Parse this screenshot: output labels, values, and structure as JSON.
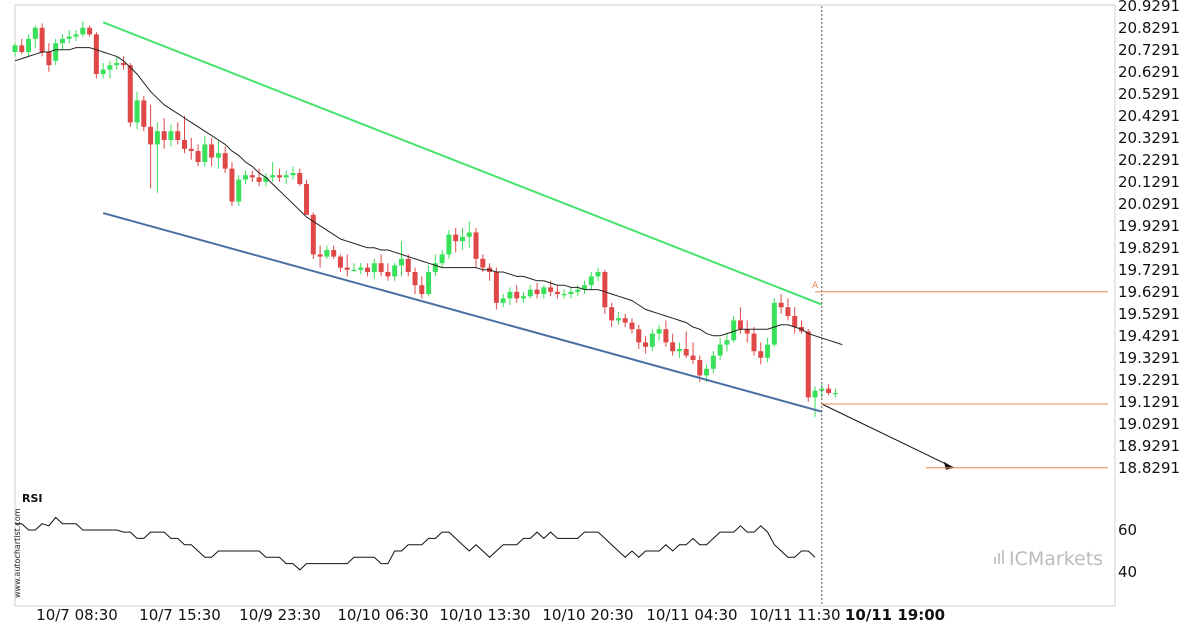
{
  "chart_data": {
    "type": "candlestick",
    "price_axis": {
      "ticks": [
        "20.9291",
        "20.8291",
        "20.7291",
        "20.6291",
        "20.5291",
        "20.4291",
        "20.3291",
        "20.2291",
        "20.1291",
        "20.0291",
        "19.9291",
        "19.8291",
        "19.7291",
        "19.6291",
        "19.5291",
        "19.4291",
        "19.3291",
        "19.2291",
        "19.1291",
        "19.0291",
        "18.9291",
        "18.8291"
      ],
      "range": [
        18.75,
        20.94
      ]
    },
    "time_axis": {
      "labels": [
        "10/7 08:30",
        "10/7 15:30",
        "10/9 23:30",
        "10/10 06:30",
        "10/10 13:30",
        "10/10 20:30",
        "10/11 04:30",
        "10/11 11:30",
        "10/11 19:00"
      ],
      "highlighted_label": "10/11 19:00"
    },
    "rsi": {
      "title": "RSI",
      "ticks": [
        "60",
        "40"
      ],
      "range": [
        25,
        75
      ],
      "values": [
        63,
        63,
        60,
        60,
        63,
        62,
        66,
        63,
        63,
        63,
        60,
        60,
        60,
        60,
        60,
        60,
        59,
        59,
        56,
        56,
        59,
        59,
        59,
        56,
        56,
        53,
        53,
        50,
        47,
        47,
        50,
        50,
        50,
        50,
        50,
        50,
        50,
        47,
        47,
        47,
        44,
        44,
        41,
        44,
        44,
        44,
        44,
        44,
        44,
        44,
        47,
        47,
        47,
        47,
        44,
        44,
        50,
        50,
        53,
        53,
        53,
        56,
        56,
        59,
        59,
        56,
        53,
        50,
        53,
        50,
        47,
        50,
        53,
        53,
        53,
        56,
        56,
        59,
        56,
        59,
        56,
        56,
        56,
        56,
        59,
        59,
        59,
        56,
        53,
        50,
        47,
        50,
        47,
        50,
        50,
        50,
        53,
        50,
        53,
        53,
        56,
        53,
        53,
        56,
        59,
        59,
        59,
        62,
        59,
        59,
        62,
        59,
        53,
        50,
        47,
        47,
        50,
        50,
        47
      ]
    },
    "candles": [
      {
        "o": 20.72,
        "h": 20.76,
        "l": 20.7,
        "c": 20.75
      },
      {
        "o": 20.75,
        "h": 20.78,
        "l": 20.71,
        "c": 20.72
      },
      {
        "o": 20.72,
        "h": 20.8,
        "l": 20.7,
        "c": 20.78
      },
      {
        "o": 20.78,
        "h": 20.84,
        "l": 20.74,
        "c": 20.83
      },
      {
        "o": 20.83,
        "h": 20.85,
        "l": 20.7,
        "c": 20.72
      },
      {
        "o": 20.72,
        "h": 20.76,
        "l": 20.63,
        "c": 20.66
      },
      {
        "o": 20.68,
        "h": 20.78,
        "l": 20.66,
        "c": 20.76
      },
      {
        "o": 20.76,
        "h": 20.8,
        "l": 20.73,
        "c": 20.78
      },
      {
        "o": 20.78,
        "h": 20.82,
        "l": 20.76,
        "c": 20.79
      },
      {
        "o": 20.79,
        "h": 20.82,
        "l": 20.77,
        "c": 20.8
      },
      {
        "o": 20.8,
        "h": 20.86,
        "l": 20.79,
        "c": 20.83
      },
      {
        "o": 20.83,
        "h": 20.84,
        "l": 20.79,
        "c": 20.8
      },
      {
        "o": 20.8,
        "h": 20.81,
        "l": 20.6,
        "c": 20.62
      },
      {
        "o": 20.62,
        "h": 20.67,
        "l": 20.6,
        "c": 20.64
      },
      {
        "o": 20.64,
        "h": 20.68,
        "l": 20.6,
        "c": 20.66
      },
      {
        "o": 20.66,
        "h": 20.7,
        "l": 20.64,
        "c": 20.67
      },
      {
        "o": 20.67,
        "h": 20.7,
        "l": 20.64,
        "c": 20.66
      },
      {
        "o": 20.66,
        "h": 20.67,
        "l": 20.38,
        "c": 20.4
      },
      {
        "o": 20.4,
        "h": 20.54,
        "l": 20.37,
        "c": 20.5
      },
      {
        "o": 20.5,
        "h": 20.52,
        "l": 20.36,
        "c": 20.38
      },
      {
        "o": 20.38,
        "h": 20.48,
        "l": 20.1,
        "c": 20.3
      },
      {
        "o": 20.3,
        "h": 20.4,
        "l": 20.08,
        "c": 20.36
      },
      {
        "o": 20.36,
        "h": 20.42,
        "l": 20.28,
        "c": 20.32
      },
      {
        "o": 20.32,
        "h": 20.39,
        "l": 20.29,
        "c": 20.36
      },
      {
        "o": 20.36,
        "h": 20.4,
        "l": 20.3,
        "c": 20.32
      },
      {
        "o": 20.32,
        "h": 20.43,
        "l": 20.26,
        "c": 20.28
      },
      {
        "o": 20.28,
        "h": 20.33,
        "l": 20.23,
        "c": 20.27
      },
      {
        "o": 20.27,
        "h": 20.3,
        "l": 20.2,
        "c": 20.22
      },
      {
        "o": 20.22,
        "h": 20.34,
        "l": 20.2,
        "c": 20.3
      },
      {
        "o": 20.3,
        "h": 20.33,
        "l": 20.2,
        "c": 20.24
      },
      {
        "o": 20.24,
        "h": 20.32,
        "l": 20.19,
        "c": 20.26
      },
      {
        "o": 20.26,
        "h": 20.29,
        "l": 20.17,
        "c": 20.19
      },
      {
        "o": 20.19,
        "h": 20.22,
        "l": 20.02,
        "c": 20.04
      },
      {
        "o": 20.04,
        "h": 20.16,
        "l": 20.02,
        "c": 20.14
      },
      {
        "o": 20.14,
        "h": 20.18,
        "l": 20.12,
        "c": 20.16
      },
      {
        "o": 20.16,
        "h": 20.18,
        "l": 20.13,
        "c": 20.15
      },
      {
        "o": 20.15,
        "h": 20.19,
        "l": 20.11,
        "c": 20.13
      },
      {
        "o": 20.13,
        "h": 20.17,
        "l": 20.11,
        "c": 20.15
      },
      {
        "o": 20.15,
        "h": 20.22,
        "l": 20.13,
        "c": 20.16
      },
      {
        "o": 20.16,
        "h": 20.19,
        "l": 20.13,
        "c": 20.15
      },
      {
        "o": 20.15,
        "h": 20.18,
        "l": 20.12,
        "c": 20.16
      },
      {
        "o": 20.16,
        "h": 20.2,
        "l": 20.14,
        "c": 20.17
      },
      {
        "o": 20.17,
        "h": 20.19,
        "l": 20.11,
        "c": 20.12
      },
      {
        "o": 20.12,
        "h": 20.14,
        "l": 19.98,
        "c": 19.98
      },
      {
        "o": 19.98,
        "h": 19.99,
        "l": 19.78,
        "c": 19.8
      },
      {
        "o": 19.8,
        "h": 19.84,
        "l": 19.74,
        "c": 19.79
      },
      {
        "o": 19.79,
        "h": 19.84,
        "l": 19.78,
        "c": 19.82
      },
      {
        "o": 19.82,
        "h": 19.84,
        "l": 19.78,
        "c": 19.79
      },
      {
        "o": 19.79,
        "h": 19.8,
        "l": 19.72,
        "c": 19.74
      },
      {
        "o": 19.74,
        "h": 19.8,
        "l": 19.7,
        "c": 19.73
      },
      {
        "o": 19.73,
        "h": 19.76,
        "l": 19.72,
        "c": 19.73
      },
      {
        "o": 19.73,
        "h": 19.76,
        "l": 19.71,
        "c": 19.74
      },
      {
        "o": 19.74,
        "h": 19.76,
        "l": 19.7,
        "c": 19.72
      },
      {
        "o": 19.72,
        "h": 19.78,
        "l": 19.69,
        "c": 19.76
      },
      {
        "o": 19.76,
        "h": 19.8,
        "l": 19.7,
        "c": 19.72
      },
      {
        "o": 19.72,
        "h": 19.76,
        "l": 19.68,
        "c": 19.7
      },
      {
        "o": 19.7,
        "h": 19.76,
        "l": 19.68,
        "c": 19.75
      },
      {
        "o": 19.75,
        "h": 19.86,
        "l": 19.7,
        "c": 19.78
      },
      {
        "o": 19.78,
        "h": 19.8,
        "l": 19.7,
        "c": 19.72
      },
      {
        "o": 19.72,
        "h": 19.74,
        "l": 19.62,
        "c": 19.66
      },
      {
        "o": 19.66,
        "h": 19.7,
        "l": 19.6,
        "c": 19.62
      },
      {
        "o": 19.62,
        "h": 19.75,
        "l": 19.61,
        "c": 19.72
      },
      {
        "o": 19.72,
        "h": 19.8,
        "l": 19.7,
        "c": 19.76
      },
      {
        "o": 19.76,
        "h": 19.82,
        "l": 19.74,
        "c": 19.8
      },
      {
        "o": 19.8,
        "h": 19.91,
        "l": 19.78,
        "c": 19.89
      },
      {
        "o": 19.89,
        "h": 19.92,
        "l": 19.81,
        "c": 19.86
      },
      {
        "o": 19.86,
        "h": 19.92,
        "l": 19.82,
        "c": 19.88
      },
      {
        "o": 19.88,
        "h": 19.95,
        "l": 19.83,
        "c": 19.9
      },
      {
        "o": 19.9,
        "h": 19.92,
        "l": 19.74,
        "c": 19.78
      },
      {
        "o": 19.78,
        "h": 19.8,
        "l": 19.72,
        "c": 19.74
      },
      {
        "o": 19.74,
        "h": 19.76,
        "l": 19.68,
        "c": 19.72
      },
      {
        "o": 19.72,
        "h": 19.74,
        "l": 19.55,
        "c": 19.58
      },
      {
        "o": 19.58,
        "h": 19.62,
        "l": 19.56,
        "c": 19.6
      },
      {
        "o": 19.6,
        "h": 19.65,
        "l": 19.57,
        "c": 19.63
      },
      {
        "o": 19.63,
        "h": 19.66,
        "l": 19.58,
        "c": 19.6
      },
      {
        "o": 19.6,
        "h": 19.63,
        "l": 19.58,
        "c": 19.61
      },
      {
        "o": 19.61,
        "h": 19.66,
        "l": 19.6,
        "c": 19.64
      },
      {
        "o": 19.64,
        "h": 19.67,
        "l": 19.6,
        "c": 19.62
      },
      {
        "o": 19.62,
        "h": 19.66,
        "l": 19.6,
        "c": 19.65
      },
      {
        "o": 19.65,
        "h": 19.68,
        "l": 19.61,
        "c": 19.63
      },
      {
        "o": 19.63,
        "h": 19.66,
        "l": 19.6,
        "c": 19.62
      },
      {
        "o": 19.62,
        "h": 19.64,
        "l": 19.6,
        "c": 19.62
      },
      {
        "o": 19.62,
        "h": 19.65,
        "l": 19.6,
        "c": 19.63
      },
      {
        "o": 19.63,
        "h": 19.66,
        "l": 19.61,
        "c": 19.64
      },
      {
        "o": 19.64,
        "h": 19.68,
        "l": 19.62,
        "c": 19.66
      },
      {
        "o": 19.66,
        "h": 19.72,
        "l": 19.64,
        "c": 19.7
      },
      {
        "o": 19.7,
        "h": 19.74,
        "l": 19.68,
        "c": 19.72
      },
      {
        "o": 19.72,
        "h": 19.73,
        "l": 19.53,
        "c": 19.56
      },
      {
        "o": 19.56,
        "h": 19.58,
        "l": 19.47,
        "c": 19.5
      },
      {
        "o": 19.5,
        "h": 19.54,
        "l": 19.48,
        "c": 19.51
      },
      {
        "o": 19.51,
        "h": 19.53,
        "l": 19.47,
        "c": 19.49
      },
      {
        "o": 19.49,
        "h": 19.51,
        "l": 19.44,
        "c": 19.46
      },
      {
        "o": 19.46,
        "h": 19.48,
        "l": 19.37,
        "c": 19.4
      },
      {
        "o": 19.4,
        "h": 19.43,
        "l": 19.35,
        "c": 19.38
      },
      {
        "o": 19.38,
        "h": 19.46,
        "l": 19.36,
        "c": 19.44
      },
      {
        "o": 19.44,
        "h": 19.48,
        "l": 19.41,
        "c": 19.46
      },
      {
        "o": 19.46,
        "h": 19.5,
        "l": 19.38,
        "c": 19.4
      },
      {
        "o": 19.4,
        "h": 19.44,
        "l": 19.34,
        "c": 19.36
      },
      {
        "o": 19.36,
        "h": 19.4,
        "l": 19.33,
        "c": 19.37
      },
      {
        "o": 19.37,
        "h": 19.45,
        "l": 19.33,
        "c": 19.34
      },
      {
        "o": 19.34,
        "h": 19.4,
        "l": 19.3,
        "c": 19.32
      },
      {
        "o": 19.32,
        "h": 19.34,
        "l": 19.22,
        "c": 19.25
      },
      {
        "o": 19.25,
        "h": 19.3,
        "l": 19.22,
        "c": 19.28
      },
      {
        "o": 19.28,
        "h": 19.36,
        "l": 19.26,
        "c": 19.34
      },
      {
        "o": 19.34,
        "h": 19.42,
        "l": 19.32,
        "c": 19.39
      },
      {
        "o": 19.39,
        "h": 19.44,
        "l": 19.36,
        "c": 19.41
      },
      {
        "o": 19.41,
        "h": 19.52,
        "l": 19.4,
        "c": 19.5
      },
      {
        "o": 19.5,
        "h": 19.56,
        "l": 19.44,
        "c": 19.46
      },
      {
        "o": 19.46,
        "h": 19.5,
        "l": 19.4,
        "c": 19.44
      },
      {
        "o": 19.44,
        "h": 19.47,
        "l": 19.34,
        "c": 19.36
      },
      {
        "o": 19.36,
        "h": 19.4,
        "l": 19.3,
        "c": 19.33
      },
      {
        "o": 19.33,
        "h": 19.42,
        "l": 19.31,
        "c": 19.39
      },
      {
        "o": 19.39,
        "h": 19.6,
        "l": 19.38,
        "c": 19.58
      },
      {
        "o": 19.58,
        "h": 19.62,
        "l": 19.53,
        "c": 19.56
      },
      {
        "o": 19.56,
        "h": 19.6,
        "l": 19.5,
        "c": 19.52
      },
      {
        "o": 19.52,
        "h": 19.56,
        "l": 19.44,
        "c": 19.47
      },
      {
        "o": 19.47,
        "h": 19.5,
        "l": 19.44,
        "c": 19.45
      },
      {
        "o": 19.45,
        "h": 19.46,
        "l": 19.13,
        "c": 19.15
      },
      {
        "o": 19.15,
        "h": 19.2,
        "l": 19.06,
        "c": 19.18
      },
      {
        "o": 19.18,
        "h": 19.21,
        "l": 19.15,
        "c": 19.19
      },
      {
        "o": 19.19,
        "h": 19.21,
        "l": 19.16,
        "c": 19.17
      },
      {
        "o": 19.17,
        "h": 19.19,
        "l": 19.15,
        "c": 19.17
      }
    ],
    "moving_average": [
      20.68,
      20.69,
      20.7,
      20.71,
      20.72,
      20.72,
      20.73,
      20.73,
      20.73,
      20.74,
      20.74,
      20.74,
      20.73,
      20.72,
      20.71,
      20.7,
      20.68,
      20.65,
      20.62,
      20.58,
      20.54,
      20.51,
      20.48,
      20.46,
      20.44,
      20.42,
      20.4,
      20.38,
      20.36,
      20.34,
      20.32,
      20.3,
      20.27,
      20.25,
      20.22,
      20.2,
      20.17,
      20.15,
      20.12,
      20.09,
      20.06,
      20.03,
      20.0,
      19.97,
      19.95,
      19.93,
      19.91,
      19.89,
      19.87,
      19.86,
      19.85,
      19.84,
      19.83,
      19.83,
      19.82,
      19.82,
      19.81,
      19.8,
      19.79,
      19.78,
      19.77,
      19.76,
      19.75,
      19.74,
      19.74,
      19.74,
      19.74,
      19.74,
      19.74,
      19.73,
      19.73,
      19.72,
      19.72,
      19.71,
      19.7,
      19.7,
      19.69,
      19.68,
      19.68,
      19.67,
      19.66,
      19.66,
      19.65,
      19.65,
      19.64,
      19.64,
      19.64,
      19.63,
      19.62,
      19.61,
      19.6,
      19.59,
      19.57,
      19.55,
      19.54,
      19.53,
      19.52,
      19.51,
      19.5,
      19.49,
      19.47,
      19.46,
      19.44,
      19.43,
      19.43,
      19.44,
      19.45,
      19.46,
      19.46,
      19.46,
      19.46,
      19.46,
      19.47,
      19.48,
      19.48,
      19.47,
      19.46,
      19.44,
      19.43,
      19.42,
      19.41,
      19.4,
      19.39
    ],
    "channel": {
      "upper": {
        "from": {
          "bar": 13,
          "price": 20.855
        },
        "to": {
          "bar": 119,
          "price": 19.572
        },
        "color": "#44e46a"
      },
      "lower": {
        "from": {
          "bar": 13,
          "price": 19.988
        },
        "to": {
          "bar": 119,
          "price": 19.085
        },
        "color": "#4a6fa5"
      }
    },
    "projection": {
      "from": {
        "bar": 119,
        "price": 19.12
      },
      "to": {
        "bar": 137,
        "price": 18.83
      }
    },
    "levels": [
      {
        "label": "A",
        "price": 19.63
      },
      {
        "price": 19.12
      },
      {
        "price": 18.83
      }
    ],
    "level_color": "#e8884a",
    "up_color": "#39e05a",
    "down_color": "#e04848"
  },
  "watermark": "www.autochartist.com",
  "brand": "ICMarkets"
}
